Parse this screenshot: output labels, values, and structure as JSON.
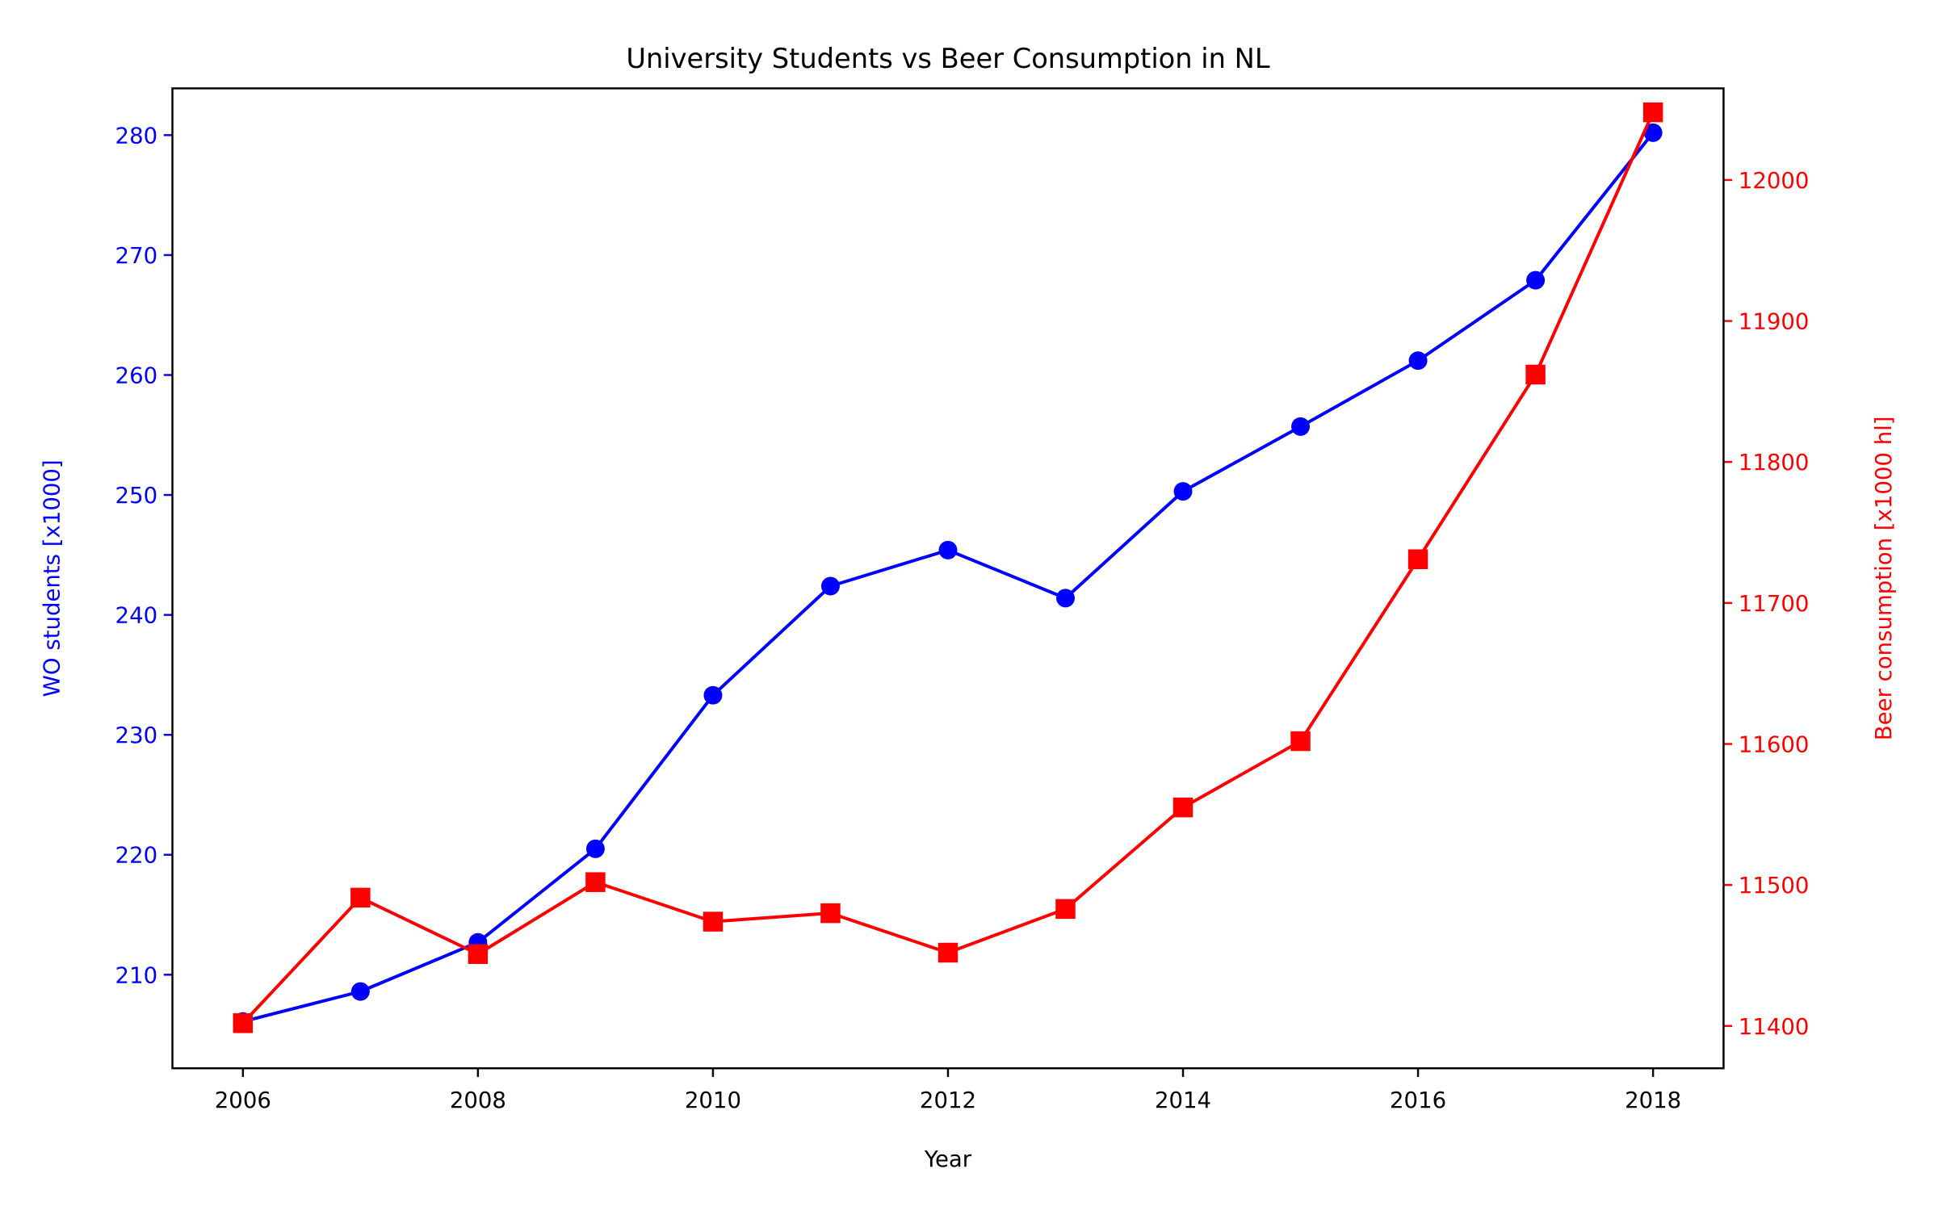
{
  "chart_data": {
    "type": "line",
    "title": "University Students vs Beer Consumption in NL",
    "xlabel": "Year",
    "ylabel_left": "WO students [x1000]",
    "ylabel_right": "Beer consumption [x1000 hl]",
    "xlim": [
      2005.4,
      2018.6
    ],
    "ylim_left": [
      202.2,
      283.9
    ],
    "ylim_right": [
      11370,
      12065
    ],
    "x_ticks": [
      2006,
      2008,
      2010,
      2012,
      2014,
      2016,
      2018
    ],
    "y_left_ticks": [
      210,
      220,
      230,
      240,
      250,
      260,
      270,
      280
    ],
    "y_right_ticks": [
      11400,
      11500,
      11600,
      11700,
      11800,
      11900,
      12000
    ],
    "x": [
      2006,
      2007,
      2008,
      2009,
      2010,
      2011,
      2012,
      2013,
      2014,
      2015,
      2016,
      2017,
      2018
    ],
    "series": [
      {
        "name": "WO students [x1000]",
        "axis": "left",
        "color": "#0000ff",
        "marker": "circle",
        "values": [
          206.1,
          208.6,
          212.7,
          220.5,
          233.3,
          242.4,
          245.4,
          241.4,
          250.3,
          255.7,
          261.2,
          267.9,
          280.2
        ]
      },
      {
        "name": "Beer consumption [x1000 hl]",
        "axis": "right",
        "color": "#ff0000",
        "marker": "square",
        "values": [
          11402,
          11491,
          11451,
          11502,
          11474,
          11480,
          11452,
          11483,
          11555,
          11602,
          11731,
          11862,
          12048
        ]
      }
    ],
    "grid": false,
    "legend": "none"
  }
}
